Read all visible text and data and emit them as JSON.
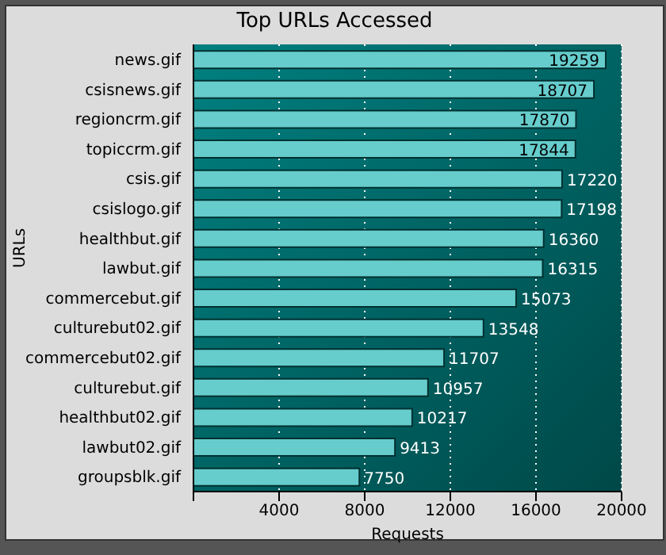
{
  "chart_data": {
    "type": "bar",
    "orientation": "horizontal",
    "title": "Top URLs Accessed",
    "xlabel": "Requests",
    "ylabel": "URLs",
    "categories": [
      "news.gif",
      "csisnews.gif",
      "regioncrm.gif",
      "topiccrm.gif",
      "csis.gif",
      "csislogo.gif",
      "healthbut.gif",
      "lawbut.gif",
      "commercebut.gif",
      "culturebut02.gif",
      "commercebut02.gif",
      "culturebut.gif",
      "healthbut02.gif",
      "lawbut02.gif",
      "groupsblk.gif"
    ],
    "values": [
      19259,
      18707,
      17870,
      17844,
      17220,
      17198,
      16360,
      16315,
      15073,
      13548,
      11707,
      10957,
      10217,
      9413,
      7750
    ],
    "color": "#66cccc",
    "data_labels": true,
    "xlim": [
      0,
      20000
    ],
    "xticks": [
      {
        "value": 0,
        "label": null
      },
      4000,
      8000,
      12000,
      16000,
      20000
    ],
    "grid": "x"
  }
}
